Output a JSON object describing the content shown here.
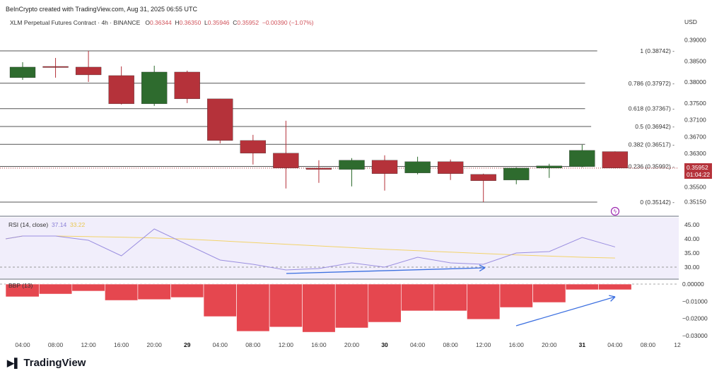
{
  "header": {
    "credit": "BeInCrypto created with TradingView.com, Aug 31, 2025 06:55 UTC",
    "symbol": "XLM Perpetual Futures Contract · 4h · BINANCE",
    "o_label": "O",
    "o": "0.36344",
    "h_label": "H",
    "h": "0.36350",
    "l_label": "L",
    "l": "0.35946",
    "c_label": "C",
    "c": "0.35952",
    "change": "−0.00390 (−1.07%)"
  },
  "currency": "USD",
  "last_price": {
    "value": "0.35952",
    "countdown": "01:04:22"
  },
  "logo": "TradingView",
  "colors": {
    "up": "#2e6b2e",
    "down": "#b5323a",
    "rsi": "#9b8fe0",
    "rsi_ma": "#f2d36b",
    "bbp": "#e5474f",
    "arrow": "#3b6fe0",
    "rsi_bg": "#f1eefb"
  },
  "chart_data": [
    {
      "type": "candlestick",
      "title": "XLM Perpetual Futures Contract · 4h · BINANCE",
      "x": [
        "04:00",
        "08:00",
        "12:00",
        "16:00",
        "20:00",
        "29",
        "04:00",
        "08:00",
        "12:00",
        "16:00",
        "20:00",
        "30",
        "04:00",
        "08:00",
        "12:00",
        "16:00",
        "20:00",
        "31",
        "04:00"
      ],
      "ohlc": [
        [
          0.38104,
          0.38473,
          0.38053,
          0.38356
        ],
        [
          0.38372,
          0.38574,
          0.38104,
          0.38356
        ],
        [
          0.38356,
          0.38742,
          0.38003,
          0.38171
        ],
        [
          0.38154,
          0.38372,
          0.37465,
          0.37482
        ],
        [
          0.37482,
          0.38389,
          0.37432,
          0.38238
        ],
        [
          0.38238,
          0.38272,
          0.37499,
          0.376
        ],
        [
          0.376,
          0.376,
          0.36541,
          0.36608
        ],
        [
          0.36608,
          0.36743,
          0.36037,
          0.36306
        ],
        [
          0.36306,
          0.37079,
          0.35466,
          0.35953
        ],
        [
          0.35953,
          0.36138,
          0.356,
          0.3592
        ],
        [
          0.3592,
          0.36188,
          0.35516,
          0.36138
        ],
        [
          0.36138,
          0.36256,
          0.35416,
          0.35819
        ],
        [
          0.35836,
          0.36222,
          0.35802,
          0.36104
        ],
        [
          0.36104,
          0.36155,
          0.35668,
          0.35819
        ],
        [
          0.35802,
          0.35819,
          0.35142,
          0.35651
        ],
        [
          0.35668,
          0.3597,
          0.35567,
          0.35953
        ],
        [
          0.35953,
          0.36054,
          0.35718,
          0.36004
        ],
        [
          0.35987,
          0.36508,
          0.3597,
          0.36373
        ],
        [
          0.36344,
          0.3635,
          0.35946,
          0.35952
        ]
      ],
      "yticks": [
        "0.39000",
        "0.38500",
        "0.38000",
        "0.37500",
        "0.37100",
        "0.36700",
        "0.36300",
        "0.35500",
        "0.35150"
      ],
      "ytick_values": [
        0.39,
        0.385,
        0.38,
        0.375,
        0.371,
        0.367,
        0.363,
        0.355,
        0.3515
      ],
      "fib": [
        {
          "label": "1 (0.38742)",
          "value": 0.38742
        },
        {
          "label": "0.786 (0.37972)",
          "value": 0.37972
        },
        {
          "label": "0.618 (0.37367)",
          "value": 0.37367
        },
        {
          "label": "0.5 (0.36942)",
          "value": 0.36942
        },
        {
          "label": "0.382 (0.36517)",
          "value": 0.36517
        },
        {
          "label": "0.236 (0.35992)",
          "value": 0.35992
        },
        {
          "label": "0 (0.35142)",
          "value": 0.35142
        }
      ]
    },
    {
      "type": "line",
      "title": "RSI (14, close)",
      "rsi_value": "37.14",
      "ma_value": "33.22",
      "series": [
        {
          "values": [
            41,
            41,
            39.5,
            34,
            43.5,
            38,
            32.5,
            31,
            29,
            29.5,
            31.5,
            30,
            33.5,
            31.5,
            31,
            35,
            35.5,
            40.5,
            37.14
          ]
        },
        {
          "values": [
            41,
            41,
            40.8,
            40.6,
            40.3,
            39.9,
            39.3,
            38.7,
            38.1,
            37.5,
            36.9,
            36.3,
            35.8,
            35.3,
            34.8,
            34.3,
            33.9,
            33.5,
            33.22
          ]
        }
      ],
      "yticks": [
        "45.00",
        "40.00",
        "35.00",
        "30.00"
      ],
      "ylim": [
        28,
        47
      ]
    },
    {
      "type": "bar",
      "title": "BBP (13)",
      "values": [
        -0.0074,
        -0.0058,
        -0.0041,
        -0.0095,
        -0.009,
        -0.0078,
        -0.0189,
        -0.0275,
        -0.025,
        -0.028,
        -0.0255,
        -0.0222,
        -0.0156,
        -0.0156,
        -0.0205,
        -0.0136,
        -0.0107,
        -0.0033,
        -0.0033
      ],
      "yticks": [
        "0.00000",
        "−0.01000",
        "−0.02000",
        "−0.03000"
      ],
      "ytick_values": [
        0,
        -0.01,
        -0.02,
        -0.03
      ]
    }
  ],
  "time_axis": [
    "04:00",
    "08:00",
    "12:00",
    "16:00",
    "20:00",
    "29",
    "04:00",
    "08:00",
    "12:00",
    "16:00",
    "20:00",
    "30",
    "04:00",
    "08:00",
    "12:00",
    "16:00",
    "20:00",
    "31",
    "04:00",
    "08:00",
    "12"
  ]
}
